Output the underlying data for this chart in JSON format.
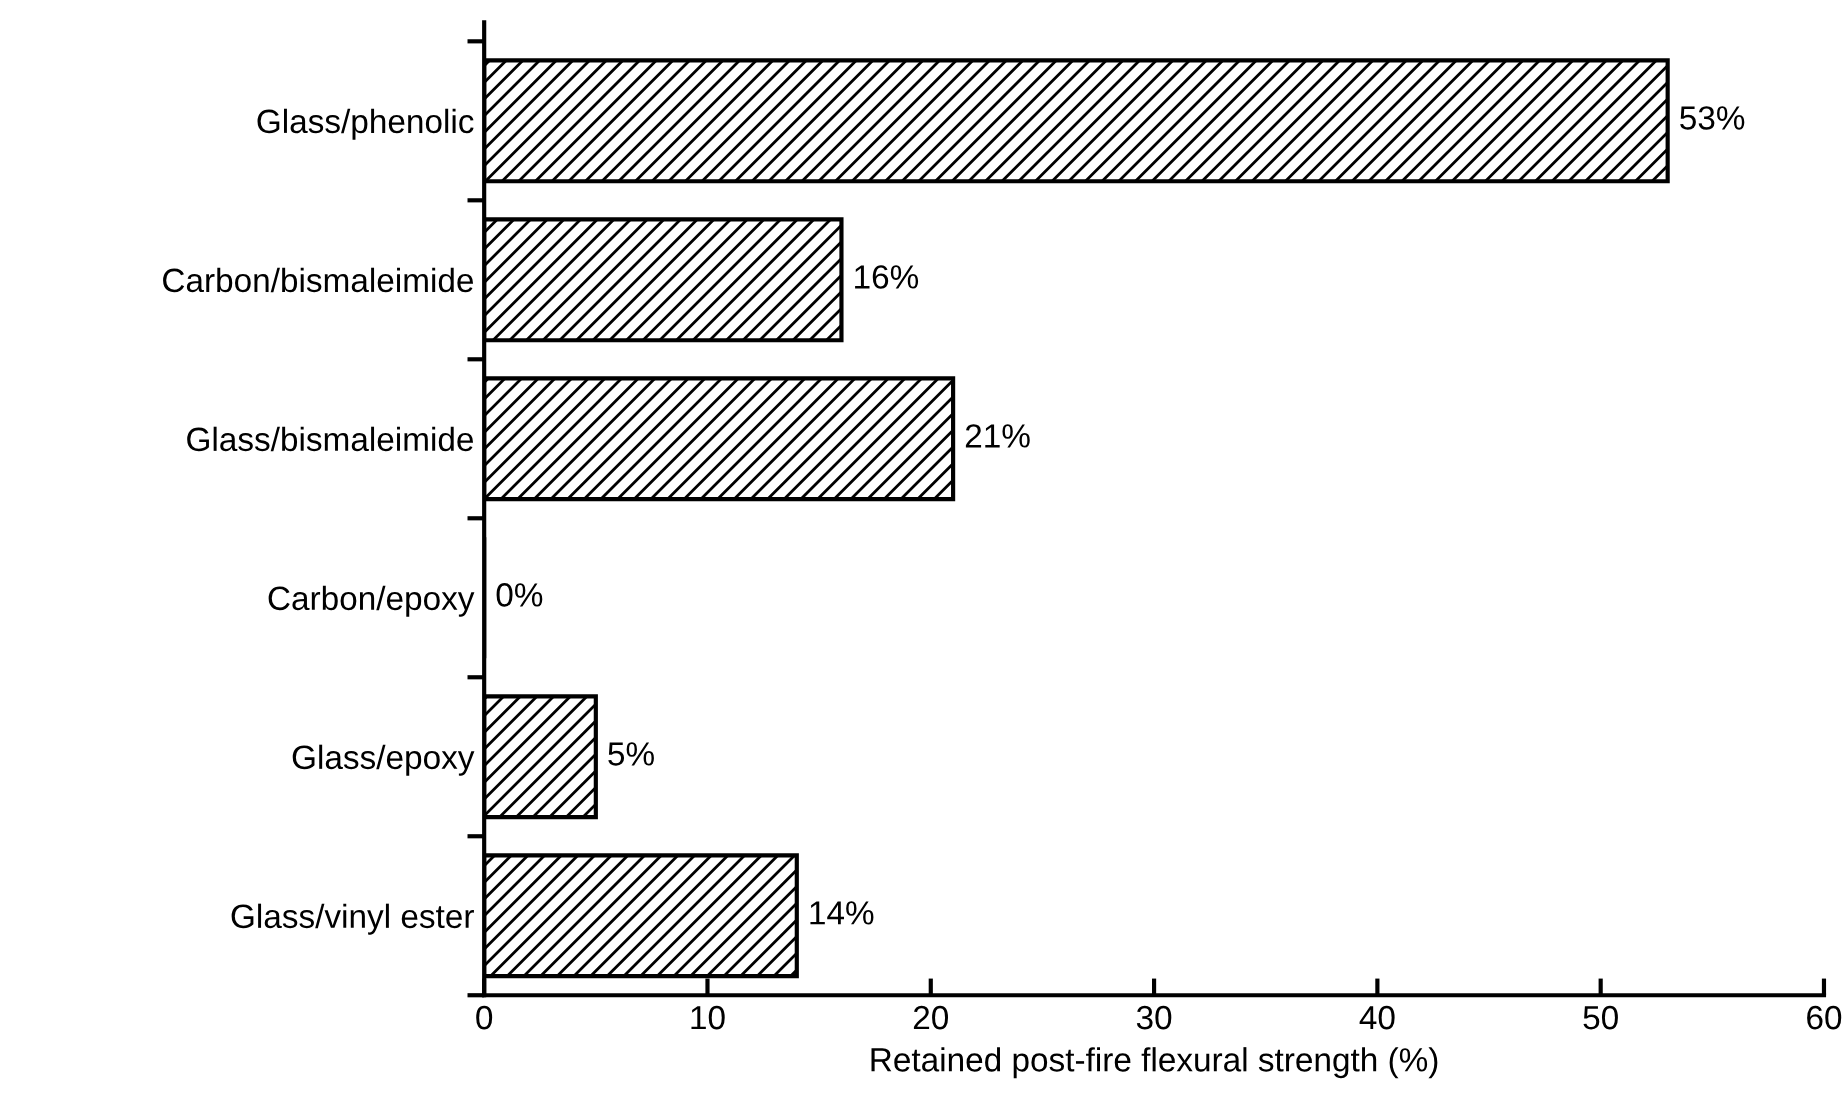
{
  "chart_data": {
    "type": "bar",
    "orientation": "horizontal",
    "categories": [
      "Glass/phenolic",
      "Carbon/bismaleimide",
      "Glass/bismaleimide",
      "Carbon/epoxy",
      "Glass/epoxy",
      "Glass/vinyl ester"
    ],
    "values": [
      53,
      16,
      21,
      0,
      5,
      14
    ],
    "value_labels": [
      "53%",
      "16%",
      "21%",
      "0%",
      "5%",
      "14%"
    ],
    "color": "#000000",
    "xlabel": "Retained post-fire flexural strength (%)",
    "xlim": [
      0,
      60
    ],
    "xticks": [
      0,
      10,
      20,
      30,
      40,
      50,
      60
    ],
    "grid": false,
    "legend": false
  }
}
